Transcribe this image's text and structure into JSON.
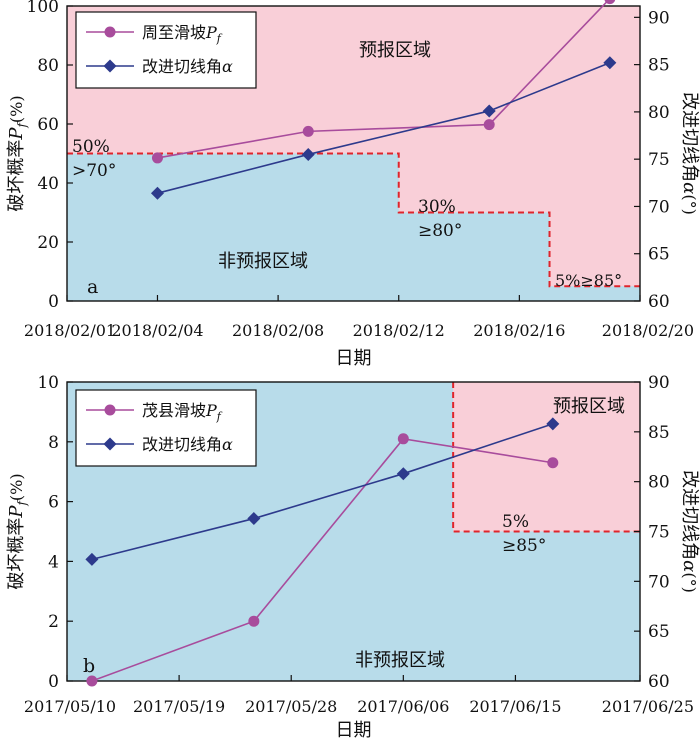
{
  "chart_data": [
    {
      "type": "line",
      "panel_label": "a",
      "x_type": "date",
      "x_ticks": [
        "2018/02/01",
        "2018/02/04",
        "2018/02/08",
        "2018/02/12",
        "2018/02/16",
        "2018/02/20"
      ],
      "xlim": [
        "2018/02/01",
        "2018/02/20"
      ],
      "xlabel": "日期",
      "ylabel": "破坏概率P_f(%)",
      "ylabel_display": {
        "main": "破坏概率",
        "var": "P",
        "sub": "f",
        "unit": "(%)"
      },
      "ylim": [
        0,
        100
      ],
      "y_ticks": [
        0,
        20,
        40,
        60,
        80,
        100
      ],
      "y2label": "改进切线角α(°)",
      "y2label_display": {
        "main": "改进切线角",
        "var": "α",
        "unit": "(°)"
      },
      "y2lim": [
        60,
        91.2
      ],
      "y2_ticks": [
        60,
        65,
        70,
        75,
        80,
        85,
        90
      ],
      "series": [
        {
          "name": "周至滑坡P_f",
          "legend_display": {
            "main": "周至滑坡",
            "var": "P",
            "sub": "f"
          },
          "axis": "left",
          "marker": "circle",
          "color": "#a84c9c",
          "points": [
            {
              "x": "2018/02/04",
              "y": 48.5
            },
            {
              "x": "2018/02/09",
              "y": 57.5
            },
            {
              "x": "2018/02/15",
              "y": 59.8
            },
            {
              "x": "2018/02/19",
              "y": 102.5
            }
          ]
        },
        {
          "name": "改进切线角α",
          "legend_display": {
            "main": "改进切线角",
            "var": "α"
          },
          "axis": "right",
          "marker": "diamond",
          "color": "#2d3a8c",
          "points": [
            {
              "x": "2018/02/04",
              "y": 71.4
            },
            {
              "x": "2018/02/09",
              "y": 75.5
            },
            {
              "x": "2018/02/15",
              "y": 80.1
            },
            {
              "x": "2018/02/19",
              "y": 85.2
            }
          ]
        }
      ],
      "regions": {
        "warning_label": "预报区域",
        "non_warning_label": "非预报区域",
        "threshold_steps": [
          {
            "x_from": "2018/02/01",
            "x_to": "2018/02/12",
            "y": 50,
            "label_top": "50%",
            "label_bottom": ">70°"
          },
          {
            "x_from": "2018/02/12",
            "x_to": "2018/02/17",
            "y": 30,
            "label_top": "30%",
            "label_bottom": "≥80°"
          },
          {
            "x_from": "2018/02/17",
            "x_to": "2018/02/20",
            "y": 5,
            "label_inline": "5%≥85°"
          }
        ]
      },
      "colors": {
        "warning": "#f9cfd8",
        "non_warning": "#b8dcea",
        "threshold": "#e0242b"
      }
    },
    {
      "type": "line",
      "panel_label": "b",
      "x_type": "date",
      "x_ticks": [
        "2017/05/10",
        "2017/05/19",
        "2017/05/28",
        "2017/06/06",
        "2017/06/15",
        "2017/06/25"
      ],
      "xlim": [
        "2017/05/10",
        "2017/06/25"
      ],
      "xlabel": "日期",
      "ylabel": "破坏概率P_f(%)",
      "ylabel_display": {
        "main": "破坏概率",
        "var": "P",
        "sub": "f",
        "unit": "(%)"
      },
      "ylim": [
        0,
        10
      ],
      "y_ticks": [
        0,
        2,
        4,
        6,
        8,
        10
      ],
      "y2label": "改进切线角α(°)",
      "y2label_display": {
        "main": "改进切线角",
        "var": "α",
        "unit": "(°)"
      },
      "y2lim": [
        60,
        90
      ],
      "y2_ticks": [
        60,
        65,
        70,
        75,
        80,
        85,
        90
      ],
      "series": [
        {
          "name": "茂县滑坡P_f",
          "legend_display": {
            "main": "茂县滑坡",
            "var": "P",
            "sub": "f"
          },
          "axis": "left",
          "marker": "circle",
          "color": "#a84c9c",
          "points": [
            {
              "x": "2017/05/12",
              "y": 0.0
            },
            {
              "x": "2017/05/25",
              "y": 2.0
            },
            {
              "x": "2017/06/06",
              "y": 8.1
            },
            {
              "x": "2017/06/18",
              "y": 7.3
            }
          ]
        },
        {
          "name": "改进切线角α",
          "legend_display": {
            "main": "改进切线角",
            "var": "α"
          },
          "axis": "right",
          "marker": "diamond",
          "color": "#2d3a8c",
          "points": [
            {
              "x": "2017/05/12",
              "y": 72.2
            },
            {
              "x": "2017/05/25",
              "y": 76.3
            },
            {
              "x": "2017/06/06",
              "y": 80.8
            },
            {
              "x": "2017/06/18",
              "y": 85.8
            }
          ]
        }
      ],
      "regions": {
        "warning_label": "预报区域",
        "non_warning_label": "非预报区域",
        "threshold_steps": [
          {
            "x_from": "2017/06/10",
            "x_to": "2017/06/25",
            "y": 5,
            "label_top": "5%",
            "label_bottom": "≥85°"
          }
        ]
      },
      "colors": {
        "warning": "#f9cfd8",
        "non_warning": "#b8dcea",
        "threshold": "#e0242b"
      }
    }
  ]
}
